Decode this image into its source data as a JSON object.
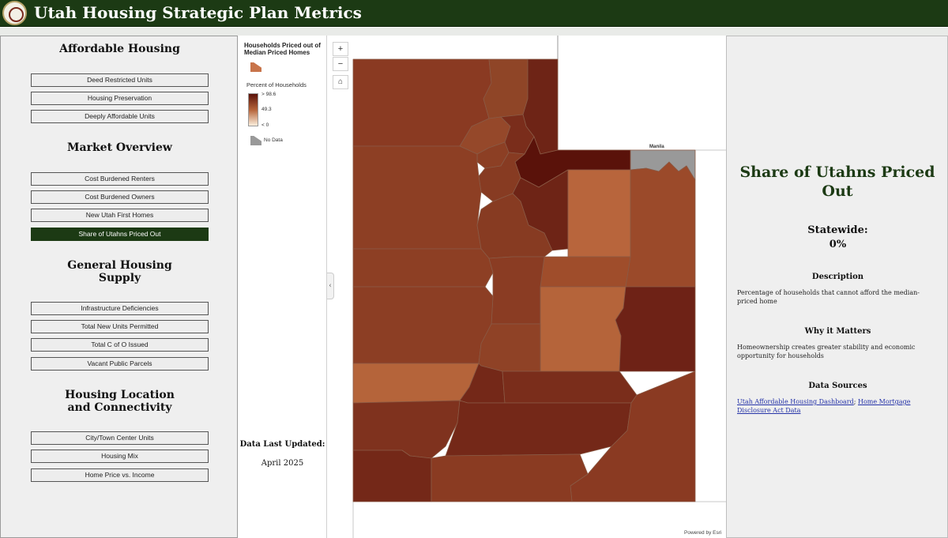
{
  "header": {
    "title": "Utah Housing Strategic Plan Metrics",
    "seal_icon": "state-seal-icon"
  },
  "sidebar": {
    "sections": [
      {
        "title": "Affordable Housing",
        "buttons": [
          "Deed Restricted Units",
          "Housing Preservation",
          "Deeply Affordable Units"
        ]
      },
      {
        "title": "Market Overview",
        "buttons": [
          "Cost Burdened Renters",
          "Cost Burdened Owners",
          "New Utah First Homes",
          "Share of Utahns Priced Out"
        ]
      },
      {
        "title_line1": "General Housing",
        "title_line2": "Supply",
        "buttons": [
          "Infrastructure Deficiencies",
          "Total New Units Permitted",
          "Total C of O Issued",
          "Vacant Public Parcels"
        ]
      },
      {
        "title_line1": "Housing Location",
        "title_line2": "and Connectivity",
        "buttons": [
          "City/Town Center Units",
          "Housing Mix",
          "Home Price vs. Income"
        ]
      }
    ],
    "active_button": "Share of Utahns Priced Out"
  },
  "legend": {
    "layer_title": "Households Priced out of Median Priced Homes",
    "field_label": "Percent of Households",
    "ramp_high": "> 98.6",
    "ramp_mid": "49.3",
    "ramp_low": "< 0",
    "no_data_label": "No Data",
    "ramp_colors": [
      "#5a120a",
      "#b5643a",
      "#fbeedc"
    ],
    "no_data_color": "#999999"
  },
  "updated": {
    "label": "Data Last Updated:",
    "value": "April 2025"
  },
  "map": {
    "zoom_in": "+",
    "zoom_out": "−",
    "home": "⌂",
    "collapse": "‹",
    "place_label": "Manila",
    "attribution": "Powered by Esri"
  },
  "detail": {
    "title": "Share of Utahns Priced Out",
    "statewide_label": "Statewide:",
    "statewide_value": "0%",
    "description_head": "Description",
    "description": "Percentage of households that cannot afford the median-priced home",
    "why_head": "Why it Matters",
    "why": "Homeownership creates greater stability and economic opportunity for households",
    "sources_head": "Data Sources",
    "source_1": "Utah Affordable Housing Dashboard",
    "source_sep": "; ",
    "source_2": "Home Mortgage Disclosure Act Data"
  },
  "colors": {
    "brand": "#1c3a14",
    "panel": "#efefef"
  }
}
